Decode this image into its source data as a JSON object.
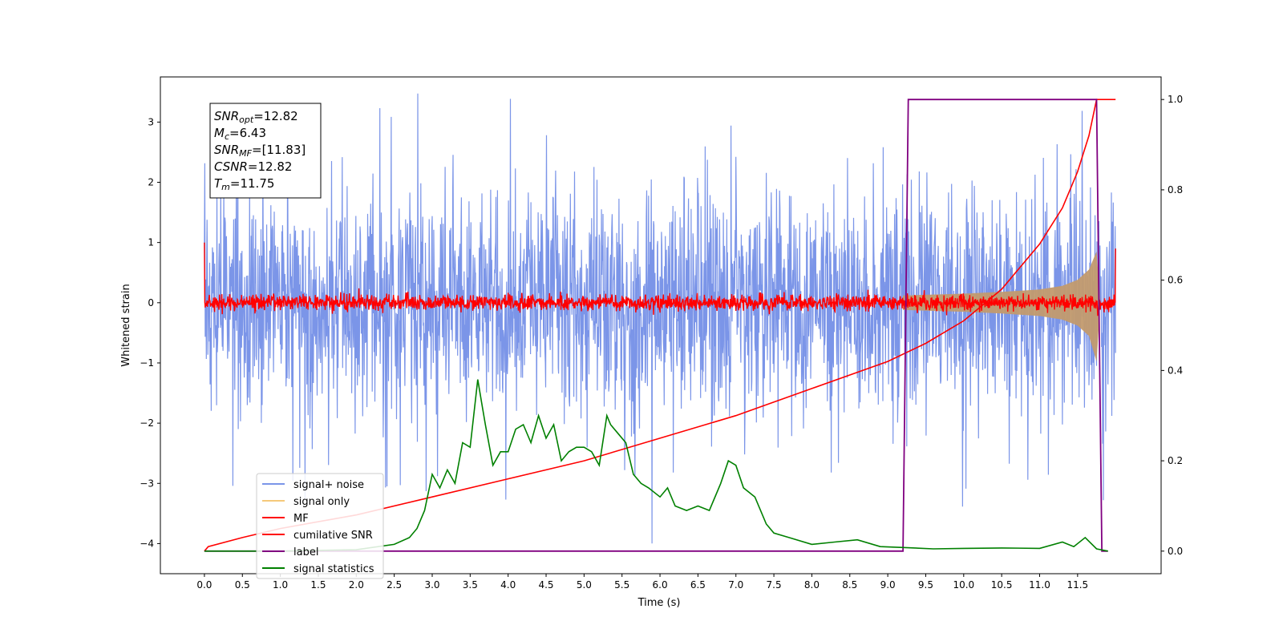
{
  "chart_data": {
    "type": "line",
    "xlabel": "Time (s)",
    "ylabel": "Whitened strain",
    "xlim": [
      -0.58,
      12.6
    ],
    "ylim": [
      -4.5,
      3.75
    ],
    "y2lim": [
      -0.05,
      1.05
    ],
    "x_ticks": [
      0.0,
      0.5,
      1.0,
      1.5,
      2.0,
      2.5,
      3.0,
      3.5,
      4.0,
      4.5,
      5.0,
      5.5,
      6.0,
      6.5,
      7.0,
      7.5,
      8.0,
      8.5,
      9.0,
      9.5,
      10.0,
      10.5,
      11.0,
      11.5
    ],
    "x_tick_labels": [
      "0.0",
      "0.5",
      "1.0",
      "1.5",
      "2.0",
      "2.5",
      "3.0",
      "3.5",
      "4.0",
      "4.5",
      "5.0",
      "5.5",
      "6.0",
      "6.5",
      "7.0",
      "7.5",
      "8.0",
      "8.5",
      "9.0",
      "9.5",
      "10.0",
      "10.5",
      "11.0",
      "11.5"
    ],
    "y_ticks": [
      3,
      2,
      1,
      0,
      -1,
      -2,
      -3,
      -4
    ],
    "y_tick_labels": [
      "3",
      "2",
      "1",
      "0",
      "−1",
      "−2",
      "−3",
      "−4"
    ],
    "y2_ticks": [
      1.0,
      0.8,
      0.6,
      0.4,
      0.2,
      0.0
    ],
    "y2_tick_labels": [
      "1.0",
      "0.8",
      "0.6",
      "0.4",
      "0.2",
      "0.0"
    ],
    "grid": false,
    "legend_position": "lower-left",
    "series": [
      {
        "name": "signal+ noise",
        "color": "#7b95e8",
        "axis": "left",
        "approx_amplitude": 1.2,
        "x_range": [
          0.0,
          12.0
        ]
      },
      {
        "name": "signal only",
        "color": "#f5c97a",
        "axis": "left",
        "x_range": [
          9.2,
          11.8
        ],
        "envelope": {
          "x": [
            9.2,
            10.0,
            10.5,
            11.0,
            11.3,
            11.5,
            11.65,
            11.75,
            11.8
          ],
          "upper": [
            0.12,
            0.15,
            0.18,
            0.22,
            0.28,
            0.38,
            0.55,
            0.85,
            0.0
          ],
          "lower": [
            -0.12,
            -0.15,
            -0.18,
            -0.22,
            -0.28,
            -0.38,
            -0.55,
            -0.98,
            0.0
          ]
        }
      },
      {
        "name": "MF",
        "color": "#ff0000",
        "axis": "left",
        "approx_amplitude": 0.12,
        "x_range": [
          0.0,
          12.0
        ],
        "edge_values": [
          1.0,
          0.9
        ]
      },
      {
        "name": "cumilative SNR",
        "color": "#ff0000",
        "axis": "right",
        "x": [
          0.0,
          0.05,
          0.5,
          1.0,
          2.0,
          3.0,
          4.0,
          5.0,
          6.0,
          7.0,
          8.0,
          9.0,
          9.5,
          10.0,
          10.5,
          11.0,
          11.3,
          11.5,
          11.65,
          11.75,
          12.0
        ],
        "y": [
          0.0,
          0.01,
          0.03,
          0.05,
          0.08,
          0.12,
          0.16,
          0.2,
          0.25,
          0.3,
          0.36,
          0.42,
          0.46,
          0.51,
          0.58,
          0.68,
          0.76,
          0.84,
          0.92,
          1.0,
          1.0
        ]
      },
      {
        "name": "label",
        "color": "#800080",
        "axis": "right",
        "x": [
          0.0,
          9.2,
          9.27,
          11.75,
          11.82,
          11.9
        ],
        "y": [
          0.0,
          0.0,
          1.0,
          1.0,
          0.0,
          0.0
        ]
      },
      {
        "name": "signal statistics",
        "color": "#008000",
        "axis": "right",
        "x": [
          0.0,
          1.0,
          2.0,
          2.5,
          2.7,
          2.8,
          2.9,
          3.0,
          3.1,
          3.2,
          3.3,
          3.4,
          3.5,
          3.6,
          3.65,
          3.7,
          3.8,
          3.9,
          4.0,
          4.1,
          4.2,
          4.3,
          4.4,
          4.5,
          4.6,
          4.7,
          4.8,
          4.9,
          5.0,
          5.1,
          5.2,
          5.3,
          5.35,
          5.45,
          5.55,
          5.65,
          5.75,
          5.85,
          6.0,
          6.1,
          6.2,
          6.35,
          6.5,
          6.65,
          6.8,
          6.9,
          7.0,
          7.1,
          7.25,
          7.4,
          7.5,
          7.7,
          8.0,
          8.3,
          8.6,
          8.9,
          9.2,
          9.6,
          10.0,
          10.5,
          11.0,
          11.3,
          11.45,
          11.6,
          11.75,
          11.9
        ],
        "y": [
          0.0,
          0.0,
          0.003,
          0.015,
          0.03,
          0.05,
          0.09,
          0.17,
          0.14,
          0.18,
          0.15,
          0.24,
          0.23,
          0.38,
          0.33,
          0.28,
          0.19,
          0.22,
          0.22,
          0.27,
          0.28,
          0.24,
          0.3,
          0.25,
          0.28,
          0.2,
          0.22,
          0.23,
          0.23,
          0.22,
          0.19,
          0.3,
          0.28,
          0.26,
          0.24,
          0.17,
          0.15,
          0.14,
          0.12,
          0.14,
          0.1,
          0.09,
          0.1,
          0.09,
          0.15,
          0.2,
          0.19,
          0.14,
          0.12,
          0.06,
          0.04,
          0.03,
          0.015,
          0.02,
          0.025,
          0.01,
          0.008,
          0.005,
          0.006,
          0.007,
          0.006,
          0.02,
          0.01,
          0.03,
          0.005,
          0.0
        ]
      }
    ],
    "annotations": [
      {
        "id": "snr_opt",
        "base": "SNR",
        "sub": "opt",
        "value": "=12.82"
      },
      {
        "id": "mc",
        "base": "M",
        "sub": "c",
        "value": "=6.43"
      },
      {
        "id": "snr_mf",
        "base": "SNR",
        "sub": "MF",
        "value": "=[11.83]"
      },
      {
        "id": "csnr",
        "base": "CSNR",
        "sub": "",
        "value": "=12.82"
      },
      {
        "id": "tm",
        "base": "T",
        "sub": "m",
        "value": "=11.75"
      }
    ]
  }
}
